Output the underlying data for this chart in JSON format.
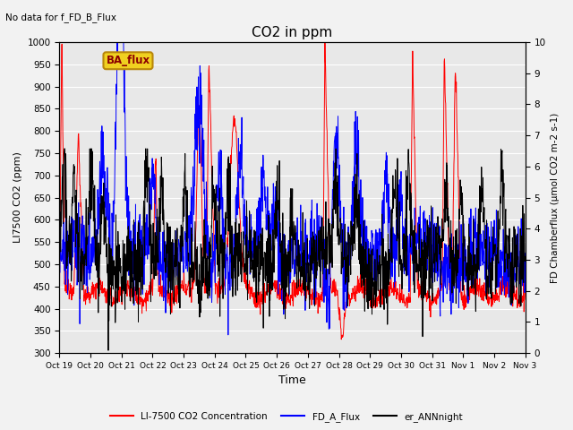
{
  "title": "CO2 in ppm",
  "top_left_text": "No data for f_FD_B_Flux",
  "legend_box_text": "BA_flux",
  "xlabel": "Time",
  "ylabel_left": "LI7500 CO2 (ppm)",
  "ylabel_right": "FD Chamberflux (μmol CO2 m-2 s-1)",
  "ylim_left": [
    300,
    1000
  ],
  "ylim_right": [
    0.0,
    10.0
  ],
  "yticks_left": [
    300,
    350,
    400,
    450,
    500,
    550,
    600,
    650,
    700,
    750,
    800,
    850,
    900,
    950,
    1000
  ],
  "yticks_right": [
    0.0,
    1.0,
    2.0,
    3.0,
    4.0,
    5.0,
    6.0,
    7.0,
    8.0,
    9.0,
    10.0
  ],
  "xtick_labels": [
    "Oct 19",
    "Oct 20",
    "Oct 21",
    "Oct 22",
    "Oct 23",
    "Oct 24",
    "Oct 25",
    "Oct 26",
    "Oct 27",
    "Oct 28",
    "Oct 29",
    "Oct 30",
    "Oct 31",
    "Nov 1",
    "Nov 2",
    "Nov 3"
  ],
  "line_colors": {
    "red": "#ff0000",
    "blue": "#0000ff",
    "black": "#000000"
  },
  "legend_entries": [
    "LI-7500 CO2 Concentration",
    "FD_A_Flux",
    "er_ANNnight"
  ],
  "legend_colors": [
    "#ff0000",
    "#0000ff",
    "#000000"
  ],
  "background_color": "#e8e8e8",
  "grid_color": "#ffffff",
  "figsize": [
    6.4,
    4.8
  ],
  "dpi": 100
}
